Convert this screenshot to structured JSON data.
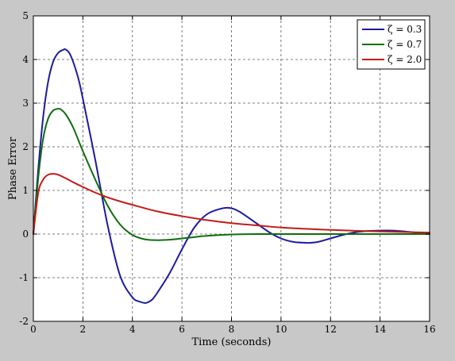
{
  "chart_data": {
    "type": "line",
    "title": "",
    "xlabel": "Time (seconds)",
    "ylabel": "Phase Error",
    "xlim": [
      0,
      16
    ],
    "ylim": [
      -2,
      5
    ],
    "xticks": [
      0,
      2,
      4,
      6,
      8,
      10,
      12,
      14,
      16
    ],
    "yticks": [
      -2,
      -1,
      0,
      1,
      2,
      3,
      4,
      5
    ],
    "xtick_labels": [
      "0",
      "2",
      "4",
      "6",
      "8",
      "10",
      "12",
      "14",
      "16"
    ],
    "ytick_labels": [
      "-2",
      "-1",
      "0",
      "1",
      "2",
      "3",
      "4",
      "5"
    ],
    "grid": true,
    "legend_position": "top-right",
    "series": [
      {
        "name": "ζ = 0.3",
        "color": "#1c1ca0",
        "x": [
          0,
          0.2,
          0.4,
          0.6,
          0.8,
          1.0,
          1.2,
          1.3,
          1.5,
          1.8,
          2.0,
          2.5,
          3.0,
          3.5,
          4.0,
          4.3,
          4.5,
          4.6,
          4.8,
          5.0,
          5.5,
          6.0,
          6.5,
          7.0,
          7.5,
          7.9,
          8.3,
          9.0,
          9.5,
          10.0,
          10.5,
          11.0,
          11.2,
          11.5,
          12.0,
          12.5,
          13.0,
          13.5,
          14.0,
          14.5,
          15.0,
          15.5,
          16.0
        ],
        "y": [
          0,
          1.5,
          2.7,
          3.5,
          3.95,
          4.15,
          4.22,
          4.23,
          4.1,
          3.6,
          3.1,
          1.7,
          0.2,
          -0.95,
          -1.45,
          -1.55,
          -1.58,
          -1.57,
          -1.5,
          -1.35,
          -0.9,
          -0.35,
          0.15,
          0.45,
          0.57,
          0.6,
          0.52,
          0.25,
          0.05,
          -0.1,
          -0.18,
          -0.2,
          -0.2,
          -0.18,
          -0.1,
          -0.02,
          0.04,
          0.07,
          0.08,
          0.08,
          0.06,
          0.03,
          0.01
        ]
      },
      {
        "name": "ζ = 0.7",
        "color": "#0e6e0e",
        "x": [
          0,
          0.2,
          0.4,
          0.6,
          0.8,
          1.0,
          1.1,
          1.3,
          1.6,
          2.0,
          2.5,
          3.0,
          3.5,
          4.0,
          4.5,
          5.0,
          5.5,
          6.0,
          6.5,
          7.0,
          8.0,
          9.0,
          10.0,
          11.0,
          12.0,
          14.0,
          16.0
        ],
        "y": [
          0,
          1.3,
          2.2,
          2.65,
          2.83,
          2.87,
          2.86,
          2.75,
          2.45,
          1.9,
          1.25,
          0.65,
          0.22,
          -0.02,
          -0.12,
          -0.14,
          -0.13,
          -0.1,
          -0.07,
          -0.04,
          -0.01,
          0.0,
          0.0,
          0.0,
          0.0,
          0.0,
          0.0
        ]
      },
      {
        "name": "ζ = 2.0",
        "color": "#c41a1a",
        "x": [
          0,
          0.2,
          0.4,
          0.6,
          0.8,
          1.0,
          1.3,
          1.6,
          2.0,
          2.5,
          3.0,
          3.5,
          4.0,
          5.0,
          6.0,
          7.0,
          8.0,
          9.0,
          10.0,
          11.0,
          12.0,
          13.0,
          14.0,
          15.0,
          16.0
        ],
        "y": [
          0,
          0.95,
          1.25,
          1.36,
          1.38,
          1.36,
          1.28,
          1.19,
          1.08,
          0.95,
          0.84,
          0.75,
          0.67,
          0.52,
          0.41,
          0.32,
          0.25,
          0.2,
          0.15,
          0.12,
          0.095,
          0.075,
          0.06,
          0.045,
          0.035
        ]
      }
    ]
  }
}
